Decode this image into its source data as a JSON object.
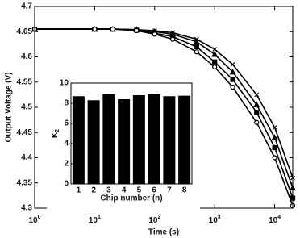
{
  "chart_data": [
    {
      "type": "line",
      "x_label": "Time (s)",
      "y_label": "Output Voltage (V)",
      "xscale": "log",
      "x": [
        1,
        10,
        20,
        50,
        100,
        200,
        500,
        1000,
        2000,
        5000,
        10000,
        20000
      ],
      "series": [
        {
          "color": "#000000",
          "marker": "x",
          "values": [
            4.655,
            4.655,
            4.655,
            4.654,
            4.652,
            4.648,
            4.635,
            4.615,
            4.585,
            4.525,
            4.46,
            4.36
          ]
        },
        {
          "color": "#000000",
          "marker": "triangle",
          "values": [
            4.655,
            4.655,
            4.655,
            4.654,
            4.65,
            4.645,
            4.63,
            4.605,
            4.57,
            4.505,
            4.44,
            4.34
          ]
        },
        {
          "color": "#000000",
          "marker": "square",
          "values": [
            4.655,
            4.655,
            4.655,
            4.653,
            4.647,
            4.64,
            4.62,
            4.59,
            4.555,
            4.49,
            4.42,
            4.32
          ]
        },
        {
          "color": "#000000",
          "marker": "circle",
          "values": [
            4.655,
            4.655,
            4.655,
            4.652,
            4.645,
            4.635,
            4.61,
            4.58,
            4.54,
            4.47,
            4.4,
            4.305
          ]
        }
      ],
      "xlim": [
        1,
        20000
      ],
      "xticks": [
        {
          "value": 1,
          "label": "10^0"
        },
        {
          "value": 10,
          "label": "10^1"
        },
        {
          "value": 100,
          "label": "10^2"
        },
        {
          "value": 1000,
          "label": "10^3"
        },
        {
          "value": 10000,
          "label": "10^4"
        }
      ],
      "ylim": [
        4.3,
        4.7
      ],
      "yticks": [
        4.3,
        4.35,
        4.4,
        4.45,
        4.5,
        4.55,
        4.6,
        4.65,
        4.7
      ]
    },
    {
      "type": "bar",
      "x_label": "Chip number (n)",
      "y_label": "K_2",
      "categories": [
        "1",
        "2",
        "3",
        "4",
        "5",
        "6",
        "7",
        "8"
      ],
      "values": [
        8.7,
        8.3,
        8.9,
        8.4,
        8.8,
        8.9,
        8.7,
        8.75
      ],
      "color": "#000000",
      "ylim": [
        0,
        10
      ],
      "yticks": [
        0,
        2,
        4,
        6,
        8,
        10
      ]
    }
  ]
}
